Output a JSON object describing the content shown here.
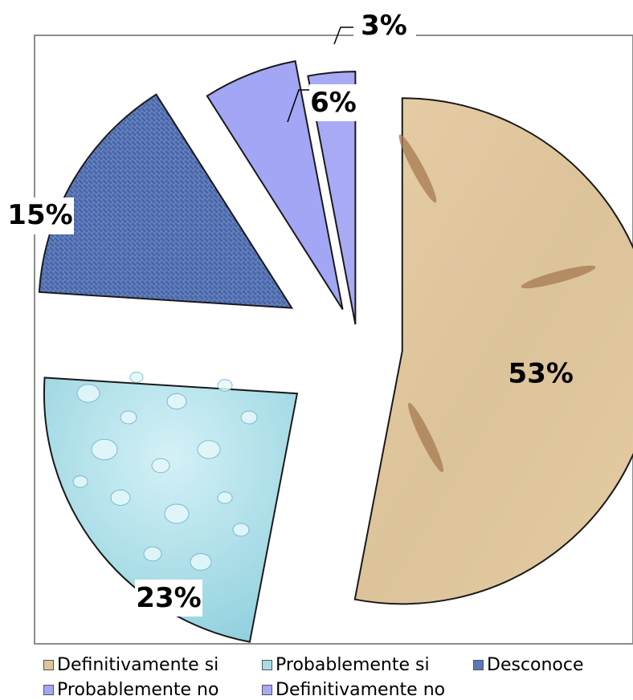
{
  "chart_data": {
    "type": "pie",
    "exploded": true,
    "categories": [
      "Definitivamente si",
      "Probablemente si",
      "Desconoce",
      "Probablemente no",
      "Definitivamente no"
    ],
    "values": [
      53,
      23,
      15,
      6,
      3
    ],
    "labels": [
      "53%",
      "23%",
      "15%",
      "6%",
      "3%"
    ],
    "colors": [
      "#e0c59c",
      "#a9dce6",
      "#5a78b8",
      "#a3a6f5",
      "#a9aaf5"
    ],
    "legend_position": "bottom"
  }
}
